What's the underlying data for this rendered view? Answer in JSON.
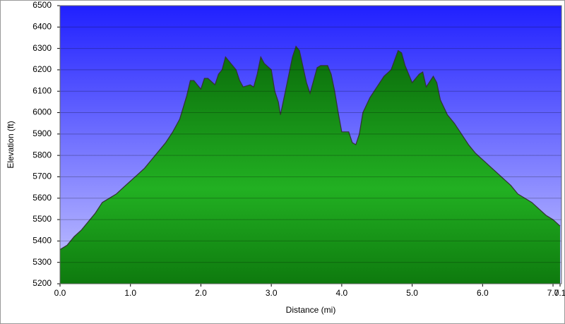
{
  "chart_data": {
    "type": "area",
    "x_label": "Distance (mi)",
    "y_label": "Elevation (ft)",
    "x": [
      0,
      0.1,
      0.2,
      0.3,
      0.4,
      0.5,
      0.6,
      0.7,
      0.8,
      0.9,
      1.0,
      1.1,
      1.2,
      1.3,
      1.4,
      1.5,
      1.6,
      1.7,
      1.8,
      1.85,
      1.9,
      2.0,
      2.05,
      2.1,
      2.2,
      2.25,
      2.3,
      2.35,
      2.4,
      2.5,
      2.55,
      2.6,
      2.7,
      2.75,
      2.8,
      2.85,
      2.9,
      3.0,
      3.05,
      3.1,
      3.13,
      3.2,
      3.3,
      3.35,
      3.4,
      3.5,
      3.55,
      3.6,
      3.65,
      3.7,
      3.8,
      3.85,
      3.9,
      3.95,
      4.0,
      4.1,
      4.15,
      4.2,
      4.25,
      4.3,
      4.4,
      4.5,
      4.6,
      4.7,
      4.8,
      4.85,
      4.9,
      5.0,
      5.1,
      5.15,
      5.2,
      5.3,
      5.35,
      5.4,
      5.5,
      5.6,
      5.7,
      5.8,
      5.9,
      6.0,
      6.1,
      6.2,
      6.3,
      6.4,
      6.5,
      6.6,
      6.7,
      6.8,
      6.9,
      7.0,
      7.1
    ],
    "values": [
      5360,
      5380,
      5420,
      5450,
      5490,
      5530,
      5580,
      5600,
      5620,
      5650,
      5680,
      5710,
      5740,
      5780,
      5820,
      5860,
      5910,
      5970,
      6080,
      6150,
      6150,
      6110,
      6160,
      6160,
      6130,
      6180,
      6200,
      6260,
      6240,
      6200,
      6150,
      6120,
      6130,
      6120,
      6180,
      6260,
      6230,
      6200,
      6100,
      6050,
      5990,
      6100,
      6260,
      6310,
      6290,
      6140,
      6090,
      6150,
      6210,
      6220,
      6220,
      6180,
      6100,
      6000,
      5910,
      5910,
      5860,
      5850,
      5900,
      6000,
      6070,
      6120,
      6170,
      6200,
      6290,
      6280,
      6220,
      6140,
      6180,
      6190,
      6120,
      6170,
      6140,
      6060,
      5990,
      5950,
      5900,
      5850,
      5810,
      5780,
      5750,
      5720,
      5690,
      5660,
      5620,
      5600,
      5580,
      5550,
      5520,
      5500,
      5470
    ],
    "color": "#22b022",
    "background": "#2020ff",
    "xlim": [
      0,
      7.12
    ],
    "ylim": [
      5200,
      6500
    ],
    "xticks": [
      {
        "value": 0,
        "label": "0.0"
      },
      {
        "value": 1,
        "label": "1.0"
      },
      {
        "value": 2,
        "label": "2.0"
      },
      {
        "value": 3,
        "label": "3.0"
      },
      {
        "value": 4,
        "label": "4.0"
      },
      {
        "value": 5,
        "label": "5.0"
      },
      {
        "value": 6,
        "label": "6.0"
      },
      {
        "value": 7,
        "label": "7.0"
      },
      7.1
    ],
    "yticks": [
      5200,
      5300,
      5400,
      5500,
      5600,
      5700,
      5800,
      5900,
      6000,
      6100,
      6200,
      6300,
      6400,
      6500
    ],
    "grid": true
  }
}
